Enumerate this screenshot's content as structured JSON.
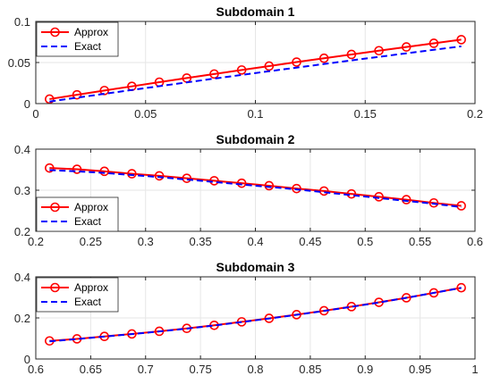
{
  "chart_data": [
    {
      "type": "line",
      "title": "Subdomain 1",
      "xlim": [
        0,
        0.2
      ],
      "ylim": [
        0,
        0.1
      ],
      "xticks": [
        0,
        0.05,
        0.1,
        0.15,
        0.2
      ],
      "xtick_labels": [
        "0",
        "0.05",
        "0.1",
        "0.15",
        "0.2"
      ],
      "yticks": [
        0,
        0.05,
        0.1
      ],
      "ytick_labels": [
        "0",
        "0.05",
        "0.1"
      ],
      "grid": true,
      "legend_position": "top-left",
      "series": [
        {
          "name": "Approx",
          "color": "#ff0000",
          "style": "solid",
          "marker": "circle",
          "x": [
            0.00625,
            0.01875,
            0.03125,
            0.04375,
            0.05625,
            0.06875,
            0.08125,
            0.09375,
            0.10625,
            0.11875,
            0.13125,
            0.14375,
            0.15625,
            0.16875,
            0.18125,
            0.19375
          ],
          "y": [
            0.0055,
            0.0107,
            0.0159,
            0.021,
            0.0261,
            0.0311,
            0.036,
            0.0409,
            0.0457,
            0.0505,
            0.0552,
            0.0598,
            0.0644,
            0.0689,
            0.0734,
            0.0778
          ]
        },
        {
          "name": "Exact",
          "color": "#0000ff",
          "style": "dashed",
          "marker": "none",
          "x": [
            0.00625,
            0.01875,
            0.03125,
            0.04375,
            0.05625,
            0.06875,
            0.08125,
            0.09375,
            0.10625,
            0.11875,
            0.13125,
            0.14375,
            0.15625,
            0.16875,
            0.18125,
            0.19375
          ],
          "y": [
            0.0025,
            0.0072,
            0.0119,
            0.0166,
            0.0212,
            0.0258,
            0.0304,
            0.0349,
            0.0394,
            0.0438,
            0.0482,
            0.0526,
            0.0569,
            0.0612,
            0.0655,
            0.0697
          ]
        }
      ]
    },
    {
      "type": "line",
      "title": "Subdomain 2",
      "xlim": [
        0.2,
        0.6
      ],
      "ylim": [
        0.2,
        0.4
      ],
      "xticks": [
        0.2,
        0.25,
        0.3,
        0.35,
        0.4,
        0.45,
        0.5,
        0.55,
        0.6
      ],
      "xtick_labels": [
        "0.2",
        "0.25",
        "0.3",
        "0.35",
        "0.4",
        "0.45",
        "0.5",
        "0.55",
        "0.6"
      ],
      "yticks": [
        0.2,
        0.3,
        0.4
      ],
      "ytick_labels": [
        "0.2",
        "0.3",
        "0.4"
      ],
      "grid": true,
      "legend_position": "bottom-left",
      "series": [
        {
          "name": "Approx",
          "color": "#ff0000",
          "style": "solid",
          "marker": "circle",
          "x": [
            0.2125,
            0.2375,
            0.2625,
            0.2875,
            0.3125,
            0.3375,
            0.3625,
            0.3875,
            0.4125,
            0.4375,
            0.4625,
            0.4875,
            0.5125,
            0.5375,
            0.5625,
            0.5875
          ],
          "y": [
            0.354,
            0.351,
            0.346,
            0.34,
            0.335,
            0.329,
            0.323,
            0.317,
            0.311,
            0.304,
            0.298,
            0.291,
            0.284,
            0.277,
            0.269,
            0.262
          ]
        },
        {
          "name": "Exact",
          "color": "#0000ff",
          "style": "dashed",
          "marker": "none",
          "x": [
            0.2125,
            0.2375,
            0.2625,
            0.2875,
            0.3125,
            0.3375,
            0.3625,
            0.3875,
            0.4125,
            0.4375,
            0.4625,
            0.4875,
            0.5125,
            0.5375,
            0.5625,
            0.5875
          ],
          "y": [
            0.349,
            0.346,
            0.342,
            0.337,
            0.332,
            0.326,
            0.32,
            0.314,
            0.308,
            0.302,
            0.295,
            0.288,
            0.281,
            0.274,
            0.267,
            0.259
          ]
        }
      ]
    },
    {
      "type": "line",
      "title": "Subdomain 3",
      "xlim": [
        0.6,
        1
      ],
      "ylim": [
        0,
        0.4
      ],
      "xticks": [
        0.6,
        0.65,
        0.7,
        0.75,
        0.8,
        0.85,
        0.9,
        0.95,
        1
      ],
      "xtick_labels": [
        "0.6",
        "0.65",
        "0.7",
        "0.75",
        "0.8",
        "0.85",
        "0.9",
        "0.95",
        "1"
      ],
      "yticks": [
        0,
        0.2,
        0.4
      ],
      "ytick_labels": [
        "0",
        "0.2",
        "0.4"
      ],
      "grid": true,
      "legend_position": "top-left",
      "series": [
        {
          "name": "Approx",
          "color": "#ff0000",
          "style": "solid",
          "marker": "circle",
          "x": [
            0.6125,
            0.6375,
            0.6625,
            0.6875,
            0.7125,
            0.7375,
            0.7625,
            0.7875,
            0.8125,
            0.8375,
            0.8625,
            0.8875,
            0.9125,
            0.9375,
            0.9625,
            0.9875
          ],
          "y": [
            0.088,
            0.098,
            0.11,
            0.122,
            0.135,
            0.149,
            0.164,
            0.181,
            0.198,
            0.216,
            0.235,
            0.255,
            0.276,
            0.298,
            0.322,
            0.347
          ]
        },
        {
          "name": "Exact",
          "color": "#0000ff",
          "style": "dashed",
          "marker": "none",
          "x": [
            0.6125,
            0.6375,
            0.6625,
            0.6875,
            0.7125,
            0.7375,
            0.7625,
            0.7875,
            0.8125,
            0.8375,
            0.8625,
            0.8875,
            0.9125,
            0.9375,
            0.9625,
            0.9875
          ],
          "y": [
            0.086,
            0.097,
            0.109,
            0.121,
            0.134,
            0.148,
            0.163,
            0.18,
            0.197,
            0.215,
            0.234,
            0.254,
            0.275,
            0.298,
            0.322,
            0.346
          ]
        }
      ]
    }
  ]
}
